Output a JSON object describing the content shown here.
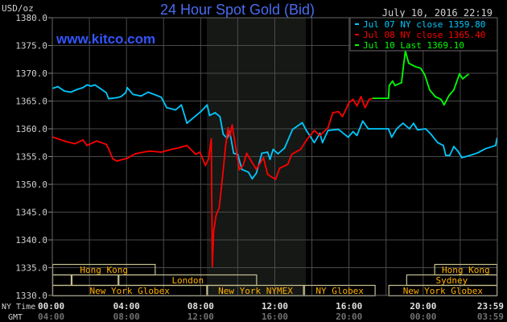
{
  "chart_data": {
    "type": "line",
    "title": "24 Hour Spot Gold (Bid)",
    "watermark": "www.kitco.com",
    "timestamp": "July 10, 2016 22:19",
    "ylabel": "USD/oz",
    "ylim": [
      1330,
      1380
    ],
    "yticks": [
      "1330.0",
      "1335.0",
      "1340.0",
      "1345.0",
      "1350.0",
      "1355.0",
      "1360.0",
      "1365.0",
      "1370.0",
      "1375.0",
      "1380.0"
    ],
    "xlim_hours": [
      0,
      24
    ],
    "grid": true,
    "legend_placement": "top-right",
    "x_rows": [
      {
        "label": "NY Time",
        "ticks": [
          "00:00",
          "04:00",
          "08:00",
          "12:00",
          "16:00",
          "20:00",
          "23:59"
        ]
      },
      {
        "label": "GMT",
        "ticks": [
          "04:00",
          "08:00",
          "12:00",
          "16:00",
          "20:00",
          "00:00",
          "03:59"
        ]
      }
    ],
    "shaded_hours": [
      8.33,
      13.67
    ],
    "sessions": [
      {
        "row": 0,
        "label": "Hong Kong",
        "start": 0,
        "end": 5.57
      },
      {
        "row": 0,
        "label": "Hong Kong",
        "start": 20.6,
        "end": 24
      },
      {
        "row": 1,
        "label": "",
        "start": 0,
        "end": 1.04
      },
      {
        "row": 1,
        "label": "",
        "start": 1.04,
        "end": 3.57
      },
      {
        "row": 1,
        "label": "London",
        "start": 3.57,
        "end": 11.04
      },
      {
        "row": 1,
        "label": "Sydney",
        "start": 19.09,
        "end": 24
      },
      {
        "row": 2,
        "label": "New York Globex",
        "start": 0,
        "end": 8.35
      },
      {
        "row": 2,
        "label": "New York NYMEX",
        "start": 8.35,
        "end": 13.57
      },
      {
        "row": 2,
        "label": "NY Globex",
        "start": 13.57,
        "end": 17.43
      },
      {
        "row": 2,
        "label": "New York Globex",
        "start": 18.13,
        "end": 24
      }
    ],
    "series": [
      {
        "name": "Jul 07 NY close 1359.80",
        "color": "#00c8ff",
        "x": [
          0.04,
          0.3,
          0.65,
          1.0,
          1.35,
          1.65,
          1.87,
          2.09,
          2.3,
          2.61,
          2.91,
          3.04,
          3.48,
          3.7,
          3.96,
          4.04,
          4.35,
          4.78,
          5.17,
          5.87,
          6.17,
          6.65,
          6.96,
          7.26,
          8.04,
          8.35,
          8.48,
          8.78,
          9.04,
          9.22,
          9.43,
          9.57,
          9.78,
          10.0,
          10.22,
          10.57,
          10.78,
          11.0,
          11.3,
          11.61,
          11.74,
          11.91,
          12.17,
          12.52,
          12.96,
          13.48,
          13.7,
          14.13,
          14.43,
          14.57,
          14.87,
          15.43,
          15.96,
          16.22,
          16.43,
          16.74,
          17.04,
          18.13,
          18.3,
          18.57,
          18.91,
          19.26,
          19.48,
          19.7,
          20.13,
          20.43,
          20.78,
          21.09,
          21.22,
          21.43,
          21.65,
          21.87,
          22.09,
          22.52,
          22.96,
          23.35,
          23.91,
          23.98
        ],
        "y": [
          1367.3,
          1367.6,
          1366.8,
          1366.6,
          1367.1,
          1367.4,
          1367.9,
          1367.7,
          1367.9,
          1367.2,
          1366.5,
          1365.4,
          1365.6,
          1365.8,
          1366.5,
          1367.4,
          1366.2,
          1365.9,
          1366.6,
          1365.7,
          1363.8,
          1363.4,
          1364.3,
          1361.0,
          1363.2,
          1364.3,
          1362.4,
          1362.9,
          1362.2,
          1359.0,
          1358.3,
          1359.5,
          1355.6,
          1355.4,
          1352.7,
          1352.2,
          1351.0,
          1352.0,
          1355.6,
          1355.8,
          1354.5,
          1356.3,
          1355.5,
          1356.5,
          1359.9,
          1361.1,
          1359.7,
          1357.5,
          1359.2,
          1357.5,
          1359.7,
          1359.9,
          1358.5,
          1359.5,
          1358.8,
          1361.4,
          1360.0,
          1360.0,
          1358.5,
          1360.0,
          1361.0,
          1360.0,
          1361.0,
          1359.8,
          1360.0,
          1359.0,
          1357.5,
          1357.0,
          1355.2,
          1355.2,
          1356.8,
          1356.0,
          1354.8,
          1355.2,
          1355.7,
          1356.4,
          1357.0,
          1358.3
        ]
      },
      {
        "name": "Jul 08 NY close 1365.40",
        "color": "#ff0000",
        "x": [
          0.04,
          0.65,
          1.22,
          1.65,
          1.87,
          2.39,
          2.91,
          3.04,
          3.26,
          3.48,
          4.04,
          4.48,
          5.22,
          5.87,
          6.43,
          6.74,
          7.26,
          7.74,
          7.96,
          8.26,
          8.43,
          8.57,
          8.61,
          8.63,
          8.7,
          8.83,
          9.0,
          9.13,
          9.35,
          9.48,
          9.57,
          9.7,
          9.91,
          10.09,
          10.3,
          10.48,
          10.78,
          11.0,
          11.39,
          11.61,
          12.04,
          12.26,
          12.7,
          12.91,
          13.39,
          13.78,
          14.13,
          14.43,
          14.87,
          15.13,
          15.43,
          15.65,
          16.0,
          16.22,
          16.43,
          16.65,
          16.87,
          17.09,
          17.3
        ],
        "y": [
          1358.5,
          1357.8,
          1357.3,
          1358.0,
          1357.0,
          1357.8,
          1357.2,
          1356.4,
          1354.6,
          1354.2,
          1354.7,
          1355.5,
          1356.0,
          1355.8,
          1356.3,
          1356.5,
          1357.0,
          1355.4,
          1355.8,
          1353.4,
          1354.6,
          1358.2,
          1343.5,
          1335.2,
          1341.5,
          1344.4,
          1345.8,
          1349.8,
          1357.0,
          1360.2,
          1358.6,
          1360.7,
          1356.3,
          1352.6,
          1353.5,
          1355.6,
          1353.9,
          1352.7,
          1354.8,
          1351.8,
          1350.9,
          1352.9,
          1353.6,
          1355.4,
          1356.3,
          1358.3,
          1359.7,
          1358.8,
          1360.2,
          1362.9,
          1363.1,
          1362.2,
          1364.7,
          1365.3,
          1364.1,
          1365.8,
          1363.8,
          1365.3,
          1365.5
        ]
      },
      {
        "name": "Jul 10 Last 1369.10",
        "color": "#00ff00",
        "x": [
          17.3,
          18.13,
          18.17,
          18.35,
          18.48,
          18.83,
          18.91,
          19.04,
          19.22,
          19.57,
          19.87,
          20.09,
          20.35,
          20.65,
          20.96,
          21.13,
          21.39,
          21.65,
          21.96,
          22.13,
          22.43
        ],
        "y": [
          1365.5,
          1365.5,
          1367.8,
          1368.6,
          1367.8,
          1368.3,
          1370.5,
          1374.0,
          1371.8,
          1371.2,
          1370.9,
          1369.7,
          1367.0,
          1365.8,
          1365.3,
          1364.3,
          1366.0,
          1367.0,
          1369.9,
          1369.0,
          1369.8
        ]
      }
    ]
  },
  "colors": {
    "background": "#000000",
    "grid": "#4a4a4a",
    "title": "#4a6cf0",
    "watermark": "#3355ff",
    "session_border": "#c8c090",
    "session_text": "#ffb000",
    "shade": "#151815"
  }
}
